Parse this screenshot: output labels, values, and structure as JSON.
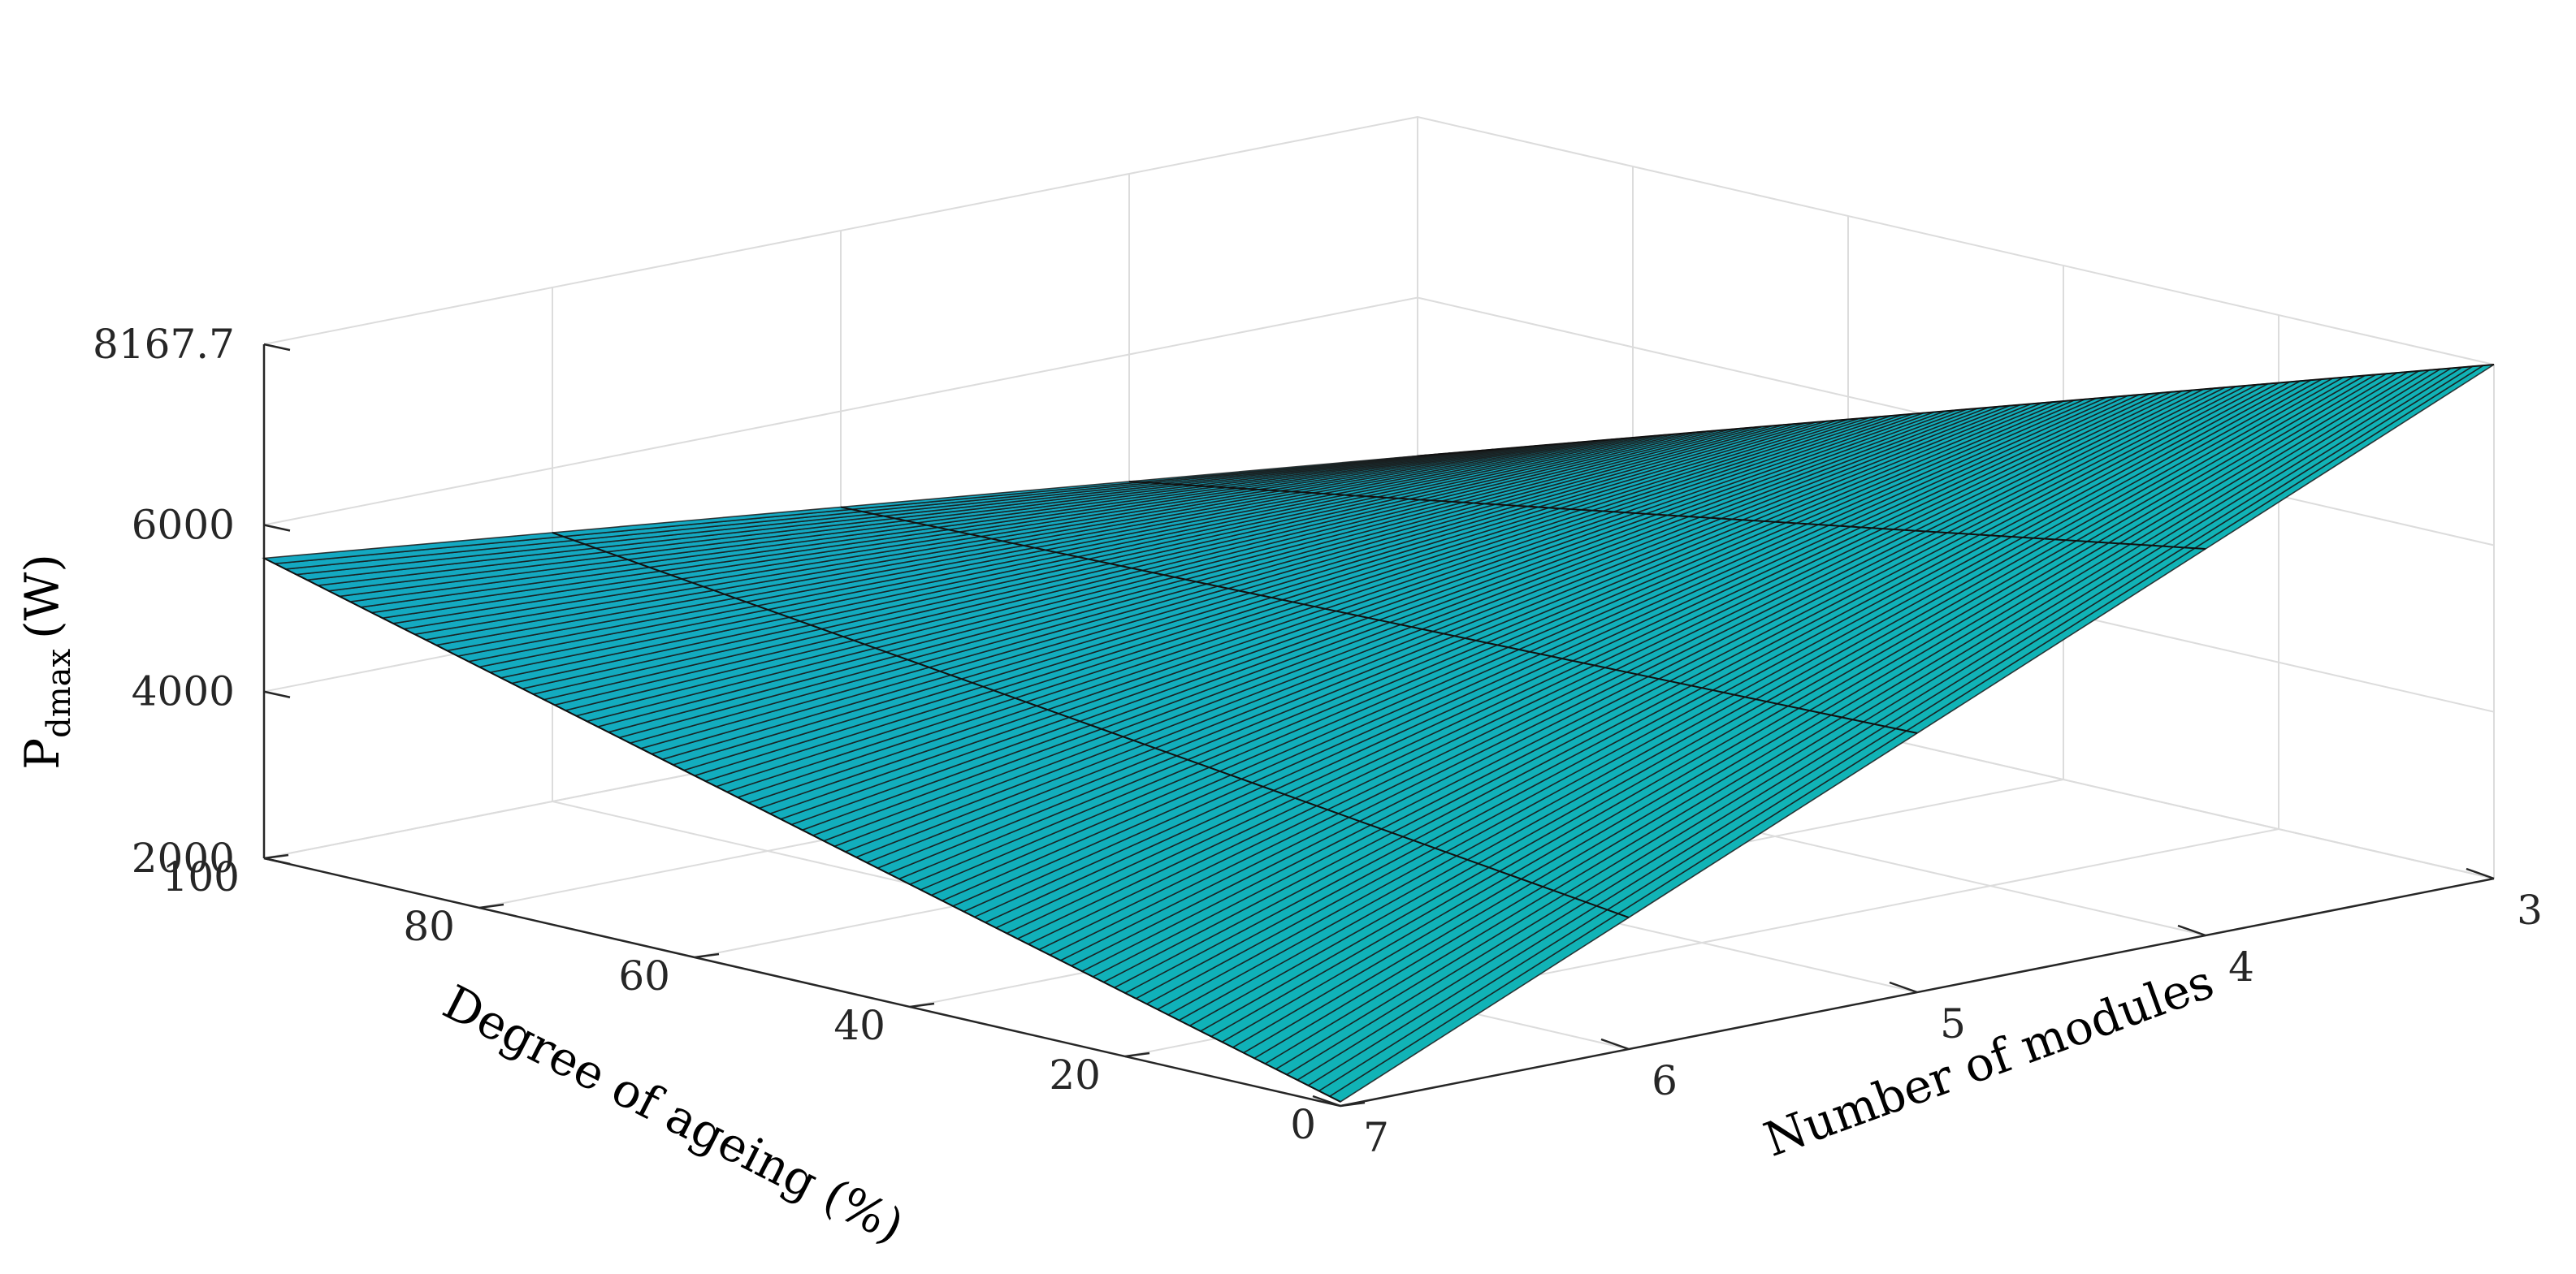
{
  "chart_data": {
    "type": "surface",
    "title": "",
    "xlabel": "Number of modules",
    "ylabel": "Degree of ageing (%)",
    "zlabel_main": "P",
    "zlabel_sub": "dmax",
    "zlabel_unit": "(W)",
    "x_ticks": [
      "3",
      "4",
      "5",
      "6",
      "7"
    ],
    "y_ticks": [
      "0",
      "20",
      "40",
      "60",
      "80",
      "100"
    ],
    "z_ticks": [
      "2000",
      "4000",
      "6000",
      "8167.7"
    ],
    "x_values": [
      3,
      4,
      5,
      6,
      7
    ],
    "y_range": [
      0,
      100
    ],
    "zlim": [
      2000,
      8167.7
    ],
    "grid": true,
    "colormap": "parula",
    "surface": {
      "corner_values": [
        {
          "modules": 3,
          "ageing": 0,
          "pdmax": 8167.7
        },
        {
          "modules": 3,
          "ageing": 100,
          "pdmax": 4100
        },
        {
          "modules": 7,
          "ageing": 0,
          "pdmax": 2050
        },
        {
          "modules": 7,
          "ageing": 100,
          "pdmax": 5600
        }
      ],
      "mesh_lines_along_modules": 100
    }
  }
}
